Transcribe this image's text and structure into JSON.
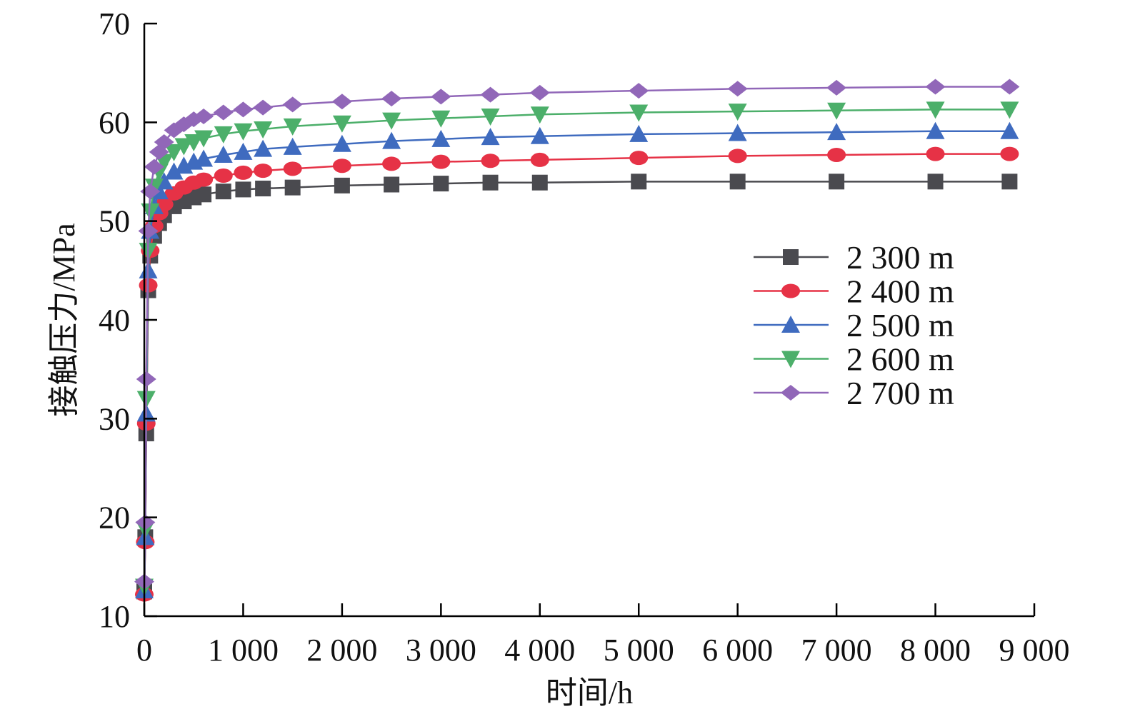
{
  "chart_data": {
    "type": "line",
    "title": "",
    "xlabel": "时间/h",
    "ylabel": "接触压力/MPa",
    "xlim": [
      0,
      9000
    ],
    "ylim": [
      10,
      70
    ],
    "xticks": [
      0,
      1000,
      2000,
      3000,
      4000,
      5000,
      6000,
      7000,
      8000,
      9000
    ],
    "xtick_labels": [
      "0",
      "1 000",
      "2 000",
      "3 000",
      "4 000",
      "5 000",
      "6 000",
      "7 000",
      "8 000",
      "9 000"
    ],
    "yticks": [
      10,
      20,
      30,
      40,
      50,
      60,
      70
    ],
    "ytick_labels": [
      "10",
      "20",
      "30",
      "40",
      "50",
      "60",
      "70"
    ],
    "grid": false,
    "legend_position": "right-middle",
    "x": [
      0,
      10,
      20,
      40,
      60,
      100,
      150,
      200,
      300,
      400,
      500,
      600,
      800,
      1000,
      1200,
      1500,
      2000,
      2500,
      3000,
      3500,
      4000,
      5000,
      6000,
      7000,
      8000,
      8750
    ],
    "series": [
      {
        "name": "2 300 m",
        "color": "#4a4a4f",
        "marker": "square",
        "values": [
          12.5,
          18,
          28.5,
          43,
          46.5,
          48.5,
          49.8,
          50.6,
          51.5,
          52.0,
          52.4,
          52.7,
          53.0,
          53.2,
          53.3,
          53.4,
          53.6,
          53.7,
          53.8,
          53.9,
          53.9,
          54.0,
          54.0,
          54.0,
          54.0,
          54.0
        ]
      },
      {
        "name": "2 400 m",
        "color": "#e63246",
        "marker": "circle",
        "values": [
          12.2,
          17.5,
          29.5,
          43.5,
          47,
          49.5,
          50.8,
          51.7,
          52.8,
          53.4,
          53.9,
          54.2,
          54.6,
          54.9,
          55.1,
          55.3,
          55.6,
          55.8,
          56.0,
          56.1,
          56.2,
          56.4,
          56.6,
          56.7,
          56.8,
          56.8
        ]
      },
      {
        "name": "2 500 m",
        "color": "#3f6bbf",
        "marker": "triangle-up",
        "values": [
          12.6,
          18,
          30.5,
          45,
          49,
          51.5,
          53,
          54,
          55,
          55.6,
          56,
          56.3,
          56.7,
          57.0,
          57.3,
          57.5,
          57.8,
          58.1,
          58.3,
          58.5,
          58.6,
          58.8,
          58.9,
          59.0,
          59.1,
          59.1
        ]
      },
      {
        "name": "2 600 m",
        "color": "#4caf6a",
        "marker": "triangle-down",
        "values": [
          13,
          18.8,
          32,
          47,
          51,
          53.5,
          55,
          56,
          57,
          57.6,
          58,
          58.4,
          58.8,
          59.1,
          59.3,
          59.6,
          59.9,
          60.2,
          60.4,
          60.6,
          60.8,
          61.0,
          61.1,
          61.2,
          61.3,
          61.3
        ]
      },
      {
        "name": "2 700 m",
        "color": "#9167b8",
        "marker": "diamond",
        "values": [
          13.5,
          19.5,
          34,
          49,
          53,
          55.5,
          57,
          58,
          59.2,
          59.8,
          60.3,
          60.6,
          61.0,
          61.3,
          61.5,
          61.8,
          62.1,
          62.4,
          62.6,
          62.8,
          63.0,
          63.2,
          63.4,
          63.5,
          63.6,
          63.6
        ]
      }
    ]
  }
}
